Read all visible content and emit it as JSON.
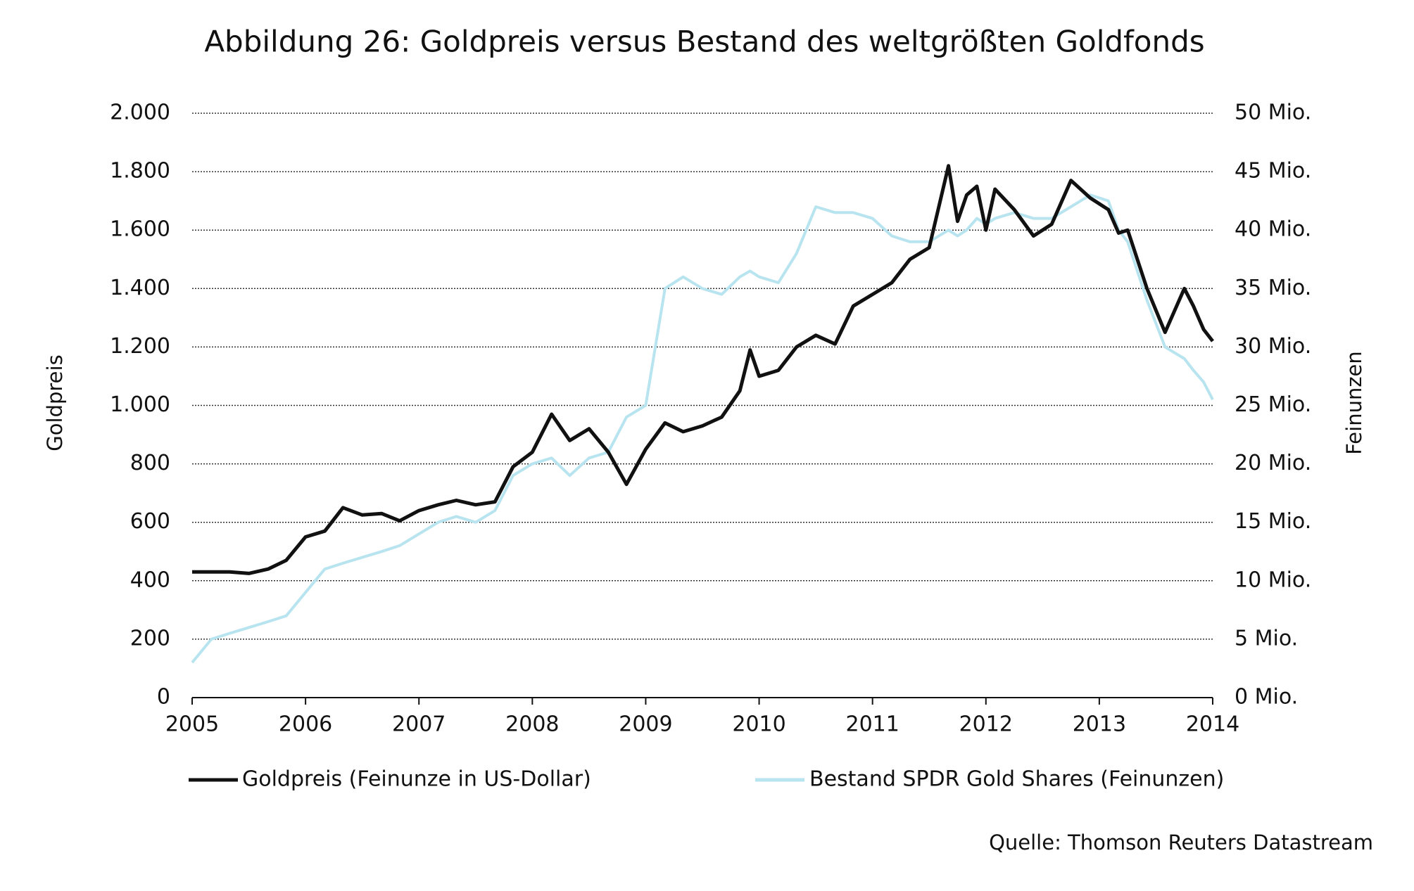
{
  "chart_data": {
    "type": "line",
    "title": "Abbildung 26: Goldpreis versus Bestand des weltgrößten Goldfonds",
    "y_label": "Goldpreis",
    "y2_label": "Feinunzen",
    "source": "Quelle: Thomson Reuters Datastream",
    "x": [
      2005,
      2005.17,
      2005.33,
      2005.5,
      2005.67,
      2005.83,
      2006,
      2006.17,
      2006.33,
      2006.5,
      2006.67,
      2006.83,
      2007,
      2007.17,
      2007.33,
      2007.5,
      2007.67,
      2007.83,
      2008,
      2008.17,
      2008.33,
      2008.5,
      2008.67,
      2008.83,
      2009,
      2009.17,
      2009.33,
      2009.5,
      2009.67,
      2009.83,
      2009.92,
      2010,
      2010.17,
      2010.33,
      2010.5,
      2010.67,
      2010.83,
      2011,
      2011.17,
      2011.33,
      2011.5,
      2011.67,
      2011.75,
      2011.83,
      2011.92,
      2012,
      2012.08,
      2012.25,
      2012.42,
      2012.58,
      2012.75,
      2012.92,
      2013.08,
      2013.17,
      2013.25,
      2013.42,
      2013.58,
      2013.75,
      2013.83,
      2013.92,
      2014
    ],
    "series": [
      {
        "name": "Goldpreis (Feinunze in US-Dollar)",
        "color": "#111111",
        "values": [
          430,
          430,
          430,
          425,
          440,
          470,
          550,
          570,
          650,
          625,
          630,
          605,
          640,
          660,
          675,
          660,
          670,
          790,
          840,
          970,
          880,
          920,
          840,
          730,
          850,
          940,
          910,
          930,
          960,
          1050,
          1190,
          1100,
          1120,
          1200,
          1240,
          1210,
          1340,
          1380,
          1420,
          1500,
          1540,
          1820,
          1630,
          1720,
          1750,
          1600,
          1740,
          1670,
          1580,
          1620,
          1770,
          1710,
          1670,
          1590,
          1600,
          1400,
          1250,
          1400,
          1340,
          1260,
          1220
        ]
      },
      {
        "name": "Bestand SPDR Gold Shares (Feinunzen)",
        "color": "#b8e4f0",
        "axis": "y2",
        "values": [
          3,
          5,
          5.5,
          6,
          6.5,
          7,
          9,
          11,
          11.5,
          12,
          12.5,
          13,
          14,
          15,
          15.5,
          15,
          16,
          19,
          20,
          20.5,
          19,
          20.5,
          21,
          24,
          25,
          35,
          36,
          35,
          34.5,
          36,
          36.5,
          36,
          35.5,
          38,
          42,
          41.5,
          41.5,
          41,
          39.5,
          39,
          39,
          40,
          39.5,
          40,
          41,
          40.5,
          41,
          41.5,
          41,
          41,
          42,
          43,
          42.5,
          40,
          39,
          34,
          30,
          29,
          28,
          27,
          25.5
        ]
      }
    ],
    "xlim": [
      2005,
      2014
    ],
    "xticks": [
      2005,
      2006,
      2007,
      2008,
      2009,
      2010,
      2011,
      2012,
      2013,
      2014
    ],
    "ylim": [
      0,
      2000
    ],
    "yticks": [
      0,
      200,
      400,
      600,
      800,
      {
        "value": 1000,
        "label": "1.000"
      },
      {
        "value": 1200,
        "label": "1.200"
      },
      {
        "value": 1400,
        "label": "1.400"
      },
      {
        "value": 1600,
        "label": "1.600"
      },
      {
        "value": 1800,
        "label": "1.800"
      },
      {
        "value": 2000,
        "label": "2.000"
      }
    ],
    "y2lim": [
      0,
      50
    ],
    "y2ticks": [
      {
        "value": 0,
        "label": "0 Mio."
      },
      {
        "value": 5,
        "label": "5 Mio."
      },
      {
        "value": 10,
        "label": "10 Mio."
      },
      {
        "value": 15,
        "label": "15 Mio."
      },
      {
        "value": 20,
        "label": "20 Mio."
      },
      {
        "value": 25,
        "label": "25 Mio."
      },
      {
        "value": 30,
        "label": "30 Mio."
      },
      {
        "value": 35,
        "label": "35 Mio."
      },
      {
        "value": 40,
        "label": "40 Mio."
      },
      {
        "value": 45,
        "label": "45 Mio."
      },
      {
        "value": 50,
        "label": "50 Mio."
      }
    ],
    "grid": true
  }
}
